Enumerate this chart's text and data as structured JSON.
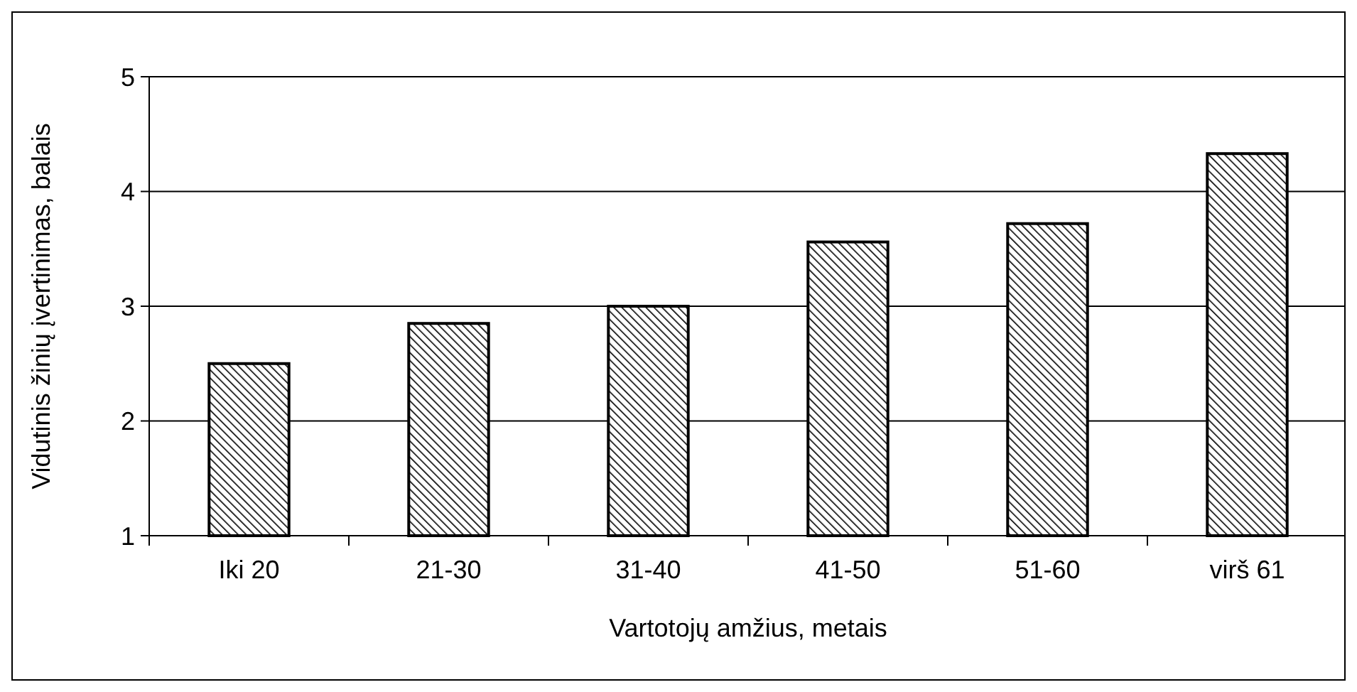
{
  "chart_data": {
    "type": "bar",
    "xlabel": "Vartotojų amžius, metais",
    "ylabel": "Vidutinis žinių įvertinimas, balais",
    "categories": [
      "Iki 20",
      "21-30",
      "31-40",
      "41-50",
      "51-60",
      "virš 61"
    ],
    "values": [
      2.5,
      2.85,
      3.0,
      3.56,
      3.72,
      4.33
    ],
    "color": "#000000",
    "ylim": [
      1,
      5
    ],
    "yticks": [
      1,
      2,
      3,
      4,
      5
    ],
    "grid": "y"
  }
}
